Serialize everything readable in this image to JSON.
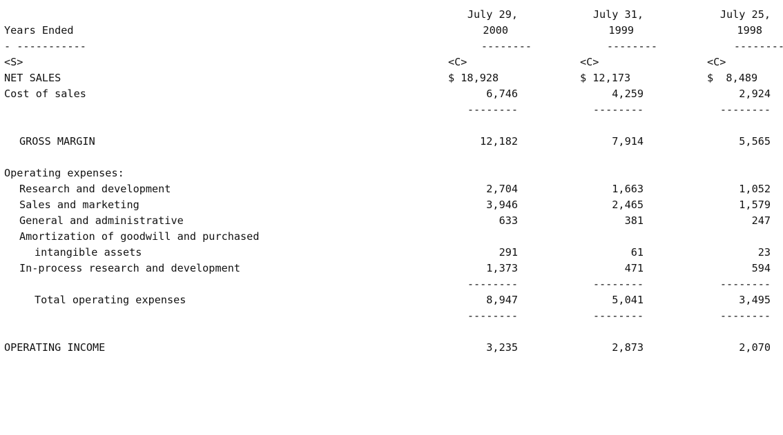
{
  "header": {
    "col1_line1": "July 29,",
    "col1_line2": "2000",
    "col2_line1": "July 31,",
    "col2_line2": "1999",
    "col3_line1": "July 25,",
    "col3_line2": "1998",
    "label": "Years Ended",
    "label_underline": "- -----------",
    "col_underline": "--------",
    "tag_s": "<S>",
    "tag_c": "<C>"
  },
  "rows": [
    {
      "label": "NET SALES",
      "v1": "$ 18,928",
      "v2": "$ 12,173",
      "v3": "$  8,489"
    },
    {
      "label": "Cost of sales",
      "v1": "6,746",
      "v2": "4,259",
      "v3": "2,924"
    },
    {
      "label": "GROSS MARGIN",
      "v1": "12,182",
      "v2": "7,914",
      "v3": "5,565"
    },
    {
      "label": "Operating expenses:"
    },
    {
      "label": "Research and development",
      "v1": "2,704",
      "v2": "1,663",
      "v3": "1,052"
    },
    {
      "label": "Sales and marketing",
      "v1": "3,946",
      "v2": "2,465",
      "v3": "1,579"
    },
    {
      "label": "General and administrative",
      "v1": "633",
      "v2": "381",
      "v3": "247"
    },
    {
      "label": "Amortization of goodwill and purchased"
    },
    {
      "label": "intangible assets",
      "v1": "291",
      "v2": "61",
      "v3": "23"
    },
    {
      "label": "In-process research and development",
      "v1": "1,373",
      "v2": "471",
      "v3": "594"
    },
    {
      "label": "Total operating expenses",
      "v1": "8,947",
      "v2": "5,041",
      "v3": "3,495"
    },
    {
      "label": "OPERATING INCOME",
      "v1": "3,235",
      "v2": "2,873",
      "v3": "2,070"
    }
  ],
  "separator": "--------"
}
